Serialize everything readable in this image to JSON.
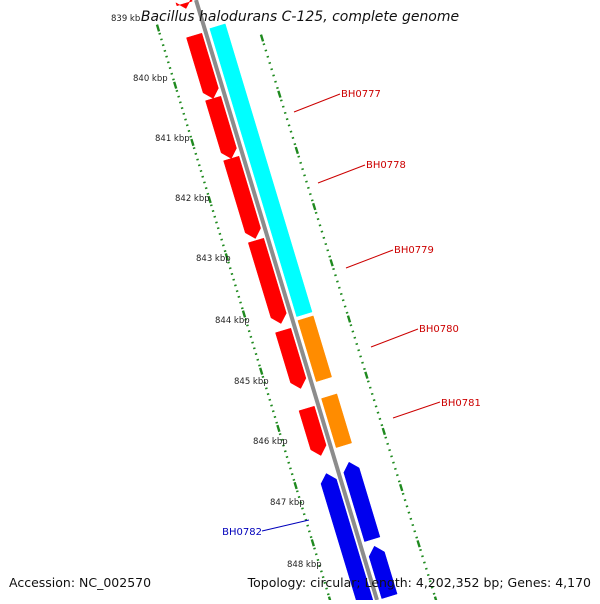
{
  "title": "Bacillus halodurans C-125, complete genome",
  "footer": {
    "accession": "Accession: NC_002570",
    "stats": "Topology: circular; Length: 4,202,352 bp; Genes: 4,170"
  },
  "kbp_labels": [
    "839 kb",
    "840 kbp",
    "841 kbp",
    "842 kbp",
    "843 kbp",
    "844 kbp",
    "845 kbp",
    "846 kbp",
    "847 kbp",
    "848 kbp"
  ],
  "gene_labels": [
    {
      "text": "BH0777",
      "color": "#cc0000"
    },
    {
      "text": "BH0778",
      "color": "#cc0000"
    },
    {
      "text": "BH0779",
      "color": "#cc0000"
    },
    {
      "text": "BH0780",
      "color": "#cc0000"
    },
    {
      "text": "BH0781",
      "color": "#cc0000"
    },
    {
      "text": "BH0782",
      "color": "#0000bb"
    }
  ],
  "colors": {
    "backbone": "#8c8c8c",
    "forward_gene": "#ff0000",
    "reverse_gene": "#0000ee",
    "feature_cyan": "#00ffff",
    "feature_orange": "#ff8c00",
    "tick_green": "#1f8a1f"
  }
}
